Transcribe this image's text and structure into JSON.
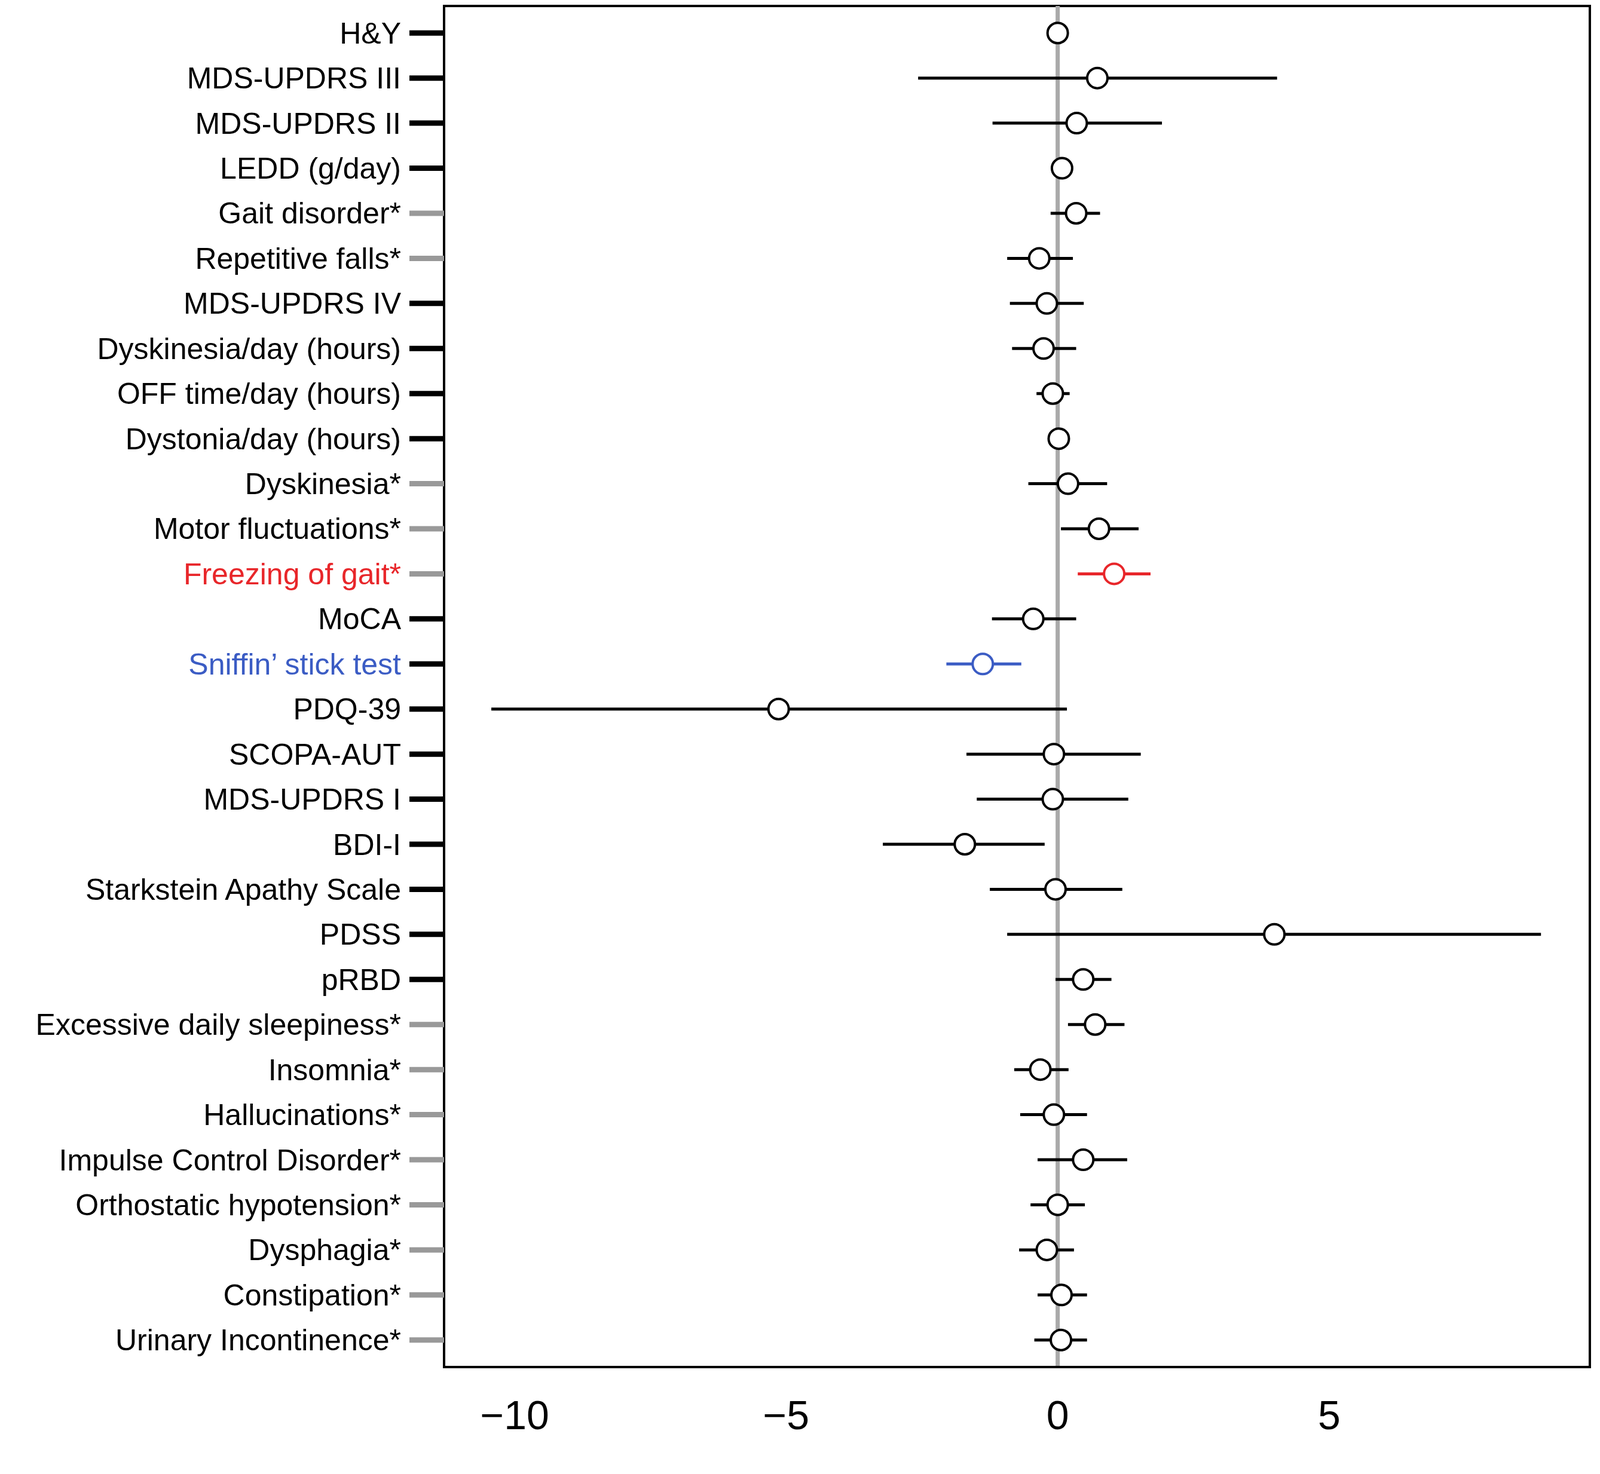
{
  "chart_data": {
    "type": "forest",
    "marker": "circle",
    "grid": false,
    "categories": [
      "H&Y",
      "MDS-UPDRS III",
      "MDS-UPDRS II",
      "LEDD (g/day)",
      "Gait disorder*",
      "Repetitive falls*",
      "MDS-UPDRS IV",
      "Dyskinesia/day (hours)",
      "OFF time/day (hours)",
      "Dystonia/day (hours)",
      "Dyskinesia*",
      "Motor fluctuations*",
      "Freezing of gait*",
      "MoCA",
      "Sniffin’ stick test",
      "PDQ-39",
      "SCOPA-AUT",
      "MDS-UPDRS I",
      "BDI-I",
      "Starkstein Apathy Scale",
      "PDSS",
      "pRBD",
      "Excessive daily sleepiness*",
      "Insomnia*",
      "Hallucinations*",
      "Impulse Control Disorder*",
      "Orthostatic hypotension*",
      "Dysphagia*",
      "Constipation*",
      "Urinary Incontinence*"
    ],
    "values": [
      0,
      0.73,
      0.35,
      0.08,
      0.34,
      -0.34,
      -0.2,
      -0.26,
      -0.09,
      0.02,
      0.19,
      0.76,
      1.04,
      -0.45,
      -1.38,
      -5.14,
      -0.07,
      -0.09,
      -1.71,
      -0.04,
      3.99,
      0.47,
      0.69,
      -0.32,
      -0.07,
      0.47,
      0,
      -0.2,
      0.07,
      0.06
    ],
    "ci_low": [
      -0.05,
      -2.57,
      -1.2,
      -0.02,
      -0.13,
      -0.93,
      -0.88,
      -0.84,
      -0.39,
      -0.03,
      -0.54,
      0.06,
      0.37,
      -1.21,
      -2.05,
      -10.43,
      -1.68,
      -1.49,
      -3.22,
      -1.25,
      -0.93,
      -0.04,
      0.19,
      -0.8,
      -0.69,
      -0.37,
      -0.5,
      -0.71,
      -0.37,
      -0.43
    ],
    "ci_high": [
      0.05,
      4.04,
      1.92,
      0.18,
      0.78,
      0.28,
      0.48,
      0.34,
      0.22,
      0.07,
      0.91,
      1.49,
      1.71,
      0.34,
      -0.67,
      0.17,
      1.53,
      1.3,
      -0.24,
      1.19,
      8.9,
      0.99,
      1.23,
      0.2,
      0.54,
      1.28,
      0.5,
      0.3,
      0.54,
      0.54
    ],
    "colors": [
      "#000000",
      "#000000",
      "#000000",
      "#000000",
      "#000000",
      "#000000",
      "#000000",
      "#000000",
      "#000000",
      "#000000",
      "#000000",
      "#000000",
      "#e8262a",
      "#000000",
      "#3b5cc4",
      "#000000",
      "#000000",
      "#000000",
      "#000000",
      "#000000",
      "#000000",
      "#000000",
      "#000000",
      "#000000",
      "#000000",
      "#000000",
      "#000000",
      "#000000",
      "#000000",
      "#000000"
    ],
    "xlim": [
      -11.3,
      9.8
    ],
    "xticks": [
      {
        "value": -10,
        "label": "−10"
      },
      {
        "value": -5,
        "label": "−5"
      },
      0,
      5
    ],
    "reference_line": 0
  }
}
